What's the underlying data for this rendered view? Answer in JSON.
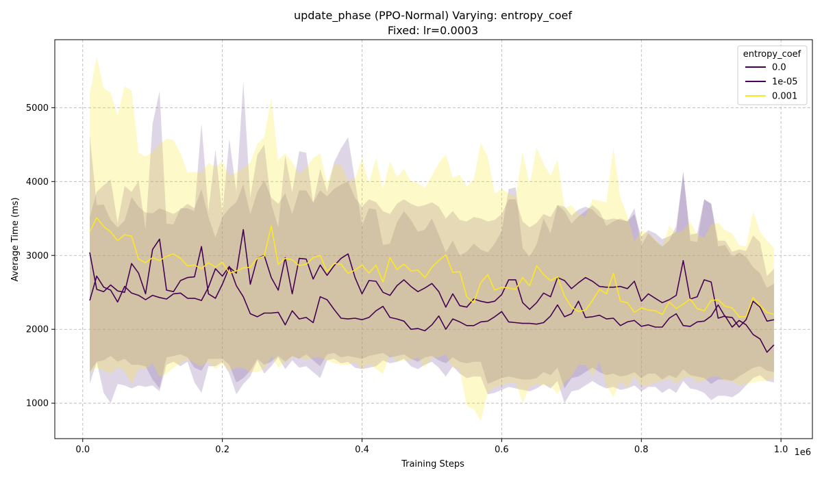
{
  "chart_data": {
    "type": "line",
    "title": "update_phase (PPO-Normal) Varying: entropy_coef",
    "subtitle": "Fixed: lr=0.0003",
    "xlabel": "Training Steps",
    "ylabel": "Average Time (ms)",
    "x_offset_label": "1e6",
    "xlim": [
      -0.04,
      1.045
    ],
    "ylim": [
      520,
      5920
    ],
    "xticks": [
      0.0,
      0.2,
      0.4,
      0.6,
      0.8,
      1.0
    ],
    "xtick_labels": [
      "0.0",
      "0.2",
      "0.4",
      "0.6",
      "0.8",
      "1.0"
    ],
    "yticks": [
      1000,
      2000,
      3000,
      4000,
      5000
    ],
    "ytick_labels": [
      "1000",
      "2000",
      "3000",
      "4000",
      "5000"
    ],
    "grid": true,
    "legend": {
      "title": "entropy_coef",
      "position": "top-right"
    },
    "x": [
      0.01,
      0.02,
      0.03,
      0.04,
      0.05,
      0.06,
      0.07,
      0.08,
      0.09,
      0.1,
      0.11,
      0.12,
      0.13,
      0.14,
      0.15,
      0.16,
      0.17,
      0.18,
      0.19,
      0.2,
      0.21,
      0.22,
      0.23,
      0.24,
      0.25,
      0.26,
      0.27,
      0.28,
      0.29,
      0.3,
      0.31,
      0.32,
      0.33,
      0.34,
      0.35,
      0.36,
      0.37,
      0.38,
      0.39,
      0.4,
      0.41,
      0.42,
      0.43,
      0.44,
      0.45,
      0.46,
      0.47,
      0.48,
      0.49,
      0.5,
      0.51,
      0.52,
      0.53,
      0.54,
      0.55,
      0.56,
      0.57,
      0.58,
      0.59,
      0.6,
      0.61,
      0.62,
      0.63,
      0.64,
      0.65,
      0.66,
      0.67,
      0.68,
      0.69,
      0.7,
      0.71,
      0.72,
      0.73,
      0.74,
      0.75,
      0.76,
      0.77,
      0.78,
      0.79,
      0.8,
      0.81,
      0.82,
      0.83,
      0.84,
      0.85,
      0.86,
      0.87,
      0.88,
      0.89,
      0.9,
      0.91,
      0.92,
      0.93,
      0.94,
      0.95,
      0.96,
      0.97,
      0.98,
      0.99
    ],
    "series": [
      {
        "name": "0.0",
        "color": "#440154",
        "fill_color": "#7b5a9c",
        "values": [
          3040,
          2540,
          2510,
          2600,
          2520,
          2500,
          2890,
          2760,
          2480,
          3080,
          3220,
          2530,
          2510,
          2660,
          2700,
          2710,
          3120,
          2480,
          2420,
          2610,
          2840,
          2760,
          3350,
          2610,
          2960,
          3000,
          2700,
          2530,
          2970,
          2480,
          2960,
          2950,
          2680,
          2870,
          2730,
          2860,
          2960,
          3020,
          2700,
          2480,
          2660,
          2650,
          2500,
          2460,
          2590,
          2670,
          2580,
          2510,
          2560,
          2620,
          2510,
          2300,
          2480,
          2320,
          2300,
          2410,
          2380,
          2360,
          2380,
          2470,
          2670,
          2670,
          2360,
          2270,
          2360,
          2490,
          2440,
          2700,
          2660,
          2550,
          2630,
          2700,
          2650,
          2580,
          2570,
          2570,
          2580,
          2550,
          2650,
          2380,
          2480,
          2420,
          2360,
          2400,
          2460,
          2930,
          2410,
          2440,
          2670,
          2640,
          2150,
          2180,
          2030,
          2120,
          2060,
          1930,
          1870,
          1690,
          1790
        ],
        "upper": [
          4630,
          3680,
          3690,
          3480,
          3380,
          3470,
          3790,
          3660,
          3580,
          3570,
          3640,
          3600,
          3560,
          3620,
          3700,
          3640,
          3900,
          3520,
          3240,
          3520,
          3640,
          3720,
          3960,
          3560,
          3860,
          4020,
          3780,
          3700,
          3840,
          3560,
          3880,
          3880,
          3720,
          3880,
          3800,
          3900,
          3960,
          4000,
          3780,
          3660,
          3760,
          3720,
          3600,
          3560,
          3700,
          3760,
          3700,
          3660,
          3680,
          3720,
          3660,
          3500,
          3600,
          3480,
          3460,
          3520,
          3500,
          3460,
          3480,
          3560,
          3760,
          3760,
          3460,
          3380,
          3440,
          3560,
          3520,
          3680,
          3660,
          3540,
          3620,
          3660,
          3620,
          3520,
          3480,
          3500,
          3480,
          3460,
          3560,
          3260,
          3340,
          3300,
          3220,
          3260,
          3320,
          4130,
          3280,
          3300,
          3760,
          3700,
          3120,
          3140,
          2980,
          3040,
          2980,
          2840,
          2760,
          2560,
          2620
        ],
        "lower": [
          1260,
          1560,
          1140,
          1000,
          1260,
          1240,
          1200,
          1240,
          1220,
          1240,
          1160,
          1520,
          1560,
          1500,
          1560,
          1280,
          1140,
          1500,
          1500,
          1560,
          1400,
          1120,
          1260,
          1360,
          1580,
          1400,
          1500,
          1620,
          1460,
          1580,
          1480,
          1500,
          1420,
          1340,
          1580,
          1600,
          1540,
          1560,
          1480,
          1460,
          1480,
          1500,
          1580,
          1540,
          1560,
          1600,
          1500,
          1460,
          1520,
          1560,
          1480,
          1360,
          1500,
          1400,
          1340,
          1360,
          1360,
          1120,
          1140,
          1180,
          1220,
          1200,
          1180,
          1160,
          1200,
          1260,
          1200,
          1300,
          1000,
          1160,
          1180,
          1240,
          1300,
          1240,
          1200,
          1220,
          1180,
          1200,
          1240,
          1160,
          1220,
          1220,
          1140,
          1200,
          1140,
          1300,
          1200,
          1180,
          1140,
          1040,
          1100,
          1100,
          1080,
          1140,
          1240,
          1340,
          1380,
          1300,
          1280
        ]
      },
      {
        "name": "1e-05",
        "color": "#440154",
        "fill_color": "#7b5a9c",
        "values": [
          2390,
          2720,
          2570,
          2530,
          2370,
          2580,
          2490,
          2460,
          2400,
          2460,
          2430,
          2410,
          2480,
          2490,
          2420,
          2420,
          2390,
          2570,
          2820,
          2720,
          2850,
          2590,
          2440,
          2210,
          2170,
          2220,
          2220,
          2230,
          2060,
          2250,
          2140,
          2160,
          2090,
          2440,
          2400,
          2270,
          2150,
          2140,
          2150,
          2130,
          2160,
          2250,
          2310,
          2160,
          2140,
          2110,
          2000,
          2010,
          1980,
          2060,
          2180,
          2000,
          2140,
          2100,
          2050,
          2050,
          2100,
          2110,
          2170,
          2240,
          2100,
          2090,
          2080,
          2080,
          2070,
          2090,
          2180,
          2330,
          2170,
          2210,
          2380,
          2160,
          2170,
          2190,
          2140,
          2150,
          2050,
          2100,
          2120,
          2040,
          2060,
          2030,
          2030,
          2150,
          2210,
          2050,
          2040,
          2100,
          2110,
          2180,
          2330,
          2170,
          2160,
          2030,
          2130,
          2380,
          2300,
          2110,
          2130
        ],
        "upper": [
          3520,
          3860,
          3950,
          4030,
          3440,
          3940,
          3860,
          4010,
          3350,
          4780,
          5220,
          3430,
          3420,
          3640,
          3640,
          3600,
          4790,
          3600,
          4430,
          3560,
          4580,
          3860,
          5350,
          3780,
          4360,
          4500,
          3700,
          3380,
          4350,
          3860,
          4410,
          4390,
          3700,
          4170,
          3860,
          4260,
          4450,
          4600,
          4010,
          3400,
          3640,
          3620,
          3140,
          3160,
          3450,
          3600,
          3480,
          3320,
          3350,
          3500,
          3280,
          3040,
          3200,
          3000,
          3050,
          3160,
          3080,
          3040,
          3160,
          3330,
          3900,
          3920,
          3100,
          2980,
          3150,
          3500,
          3300,
          3680,
          3600,
          3430,
          3530,
          3600,
          3680,
          3600,
          3400,
          3460,
          3500,
          3460,
          3640,
          3140,
          3300,
          3200,
          3120,
          3200,
          3400,
          4130,
          3200,
          3180,
          3760,
          3700,
          3200,
          3200,
          3050,
          3080,
          3060,
          3270,
          3180,
          2720,
          2820
        ],
        "lower": [
          1420,
          1560,
          1580,
          1640,
          1560,
          1600,
          1520,
          1520,
          1500,
          1320,
          1200,
          1620,
          1640,
          1660,
          1620,
          1480,
          1440,
          1600,
          1600,
          1600,
          1520,
          1280,
          1340,
          1440,
          1600,
          1520,
          1560,
          1640,
          1560,
          1640,
          1600,
          1660,
          1580,
          1500,
          1660,
          1680,
          1620,
          1640,
          1620,
          1600,
          1640,
          1660,
          1680,
          1620,
          1640,
          1660,
          1600,
          1560,
          1620,
          1640,
          1580,
          1540,
          1620,
          1560,
          1540,
          1560,
          1560,
          1260,
          1300,
          1340,
          1360,
          1340,
          1320,
          1320,
          1340,
          1420,
          1380,
          1480,
          1200,
          1340,
          1360,
          1420,
          1480,
          1420,
          1380,
          1400,
          1360,
          1380,
          1420,
          1340,
          1400,
          1400,
          1320,
          1380,
          1340,
          1460,
          1380,
          1360,
          1340,
          1260,
          1320,
          1320,
          1300,
          1360,
          1420,
          1480,
          1500,
          1440,
          1420
        ]
      },
      {
        "name": "0.001",
        "color": "#fde725",
        "fill_color": "#fde725",
        "values": [
          3320,
          3510,
          3390,
          3320,
          3200,
          3280,
          3260,
          2950,
          2900,
          2970,
          2930,
          2990,
          3020,
          2960,
          2860,
          2870,
          2820,
          2900,
          2840,
          2910,
          2760,
          2790,
          2830,
          2840,
          2960,
          2990,
          3400,
          2880,
          2960,
          2940,
          2860,
          2880,
          2970,
          3000,
          2780,
          2890,
          2880,
          2760,
          2800,
          2870,
          2760,
          2870,
          2640,
          2970,
          2810,
          2880,
          2790,
          2800,
          2700,
          2840,
          2930,
          3010,
          2770,
          2780,
          2440,
          2360,
          2630,
          2740,
          2530,
          2570,
          2560,
          2540,
          2700,
          2590,
          2860,
          2740,
          2660,
          2710,
          2450,
          2300,
          2240,
          2260,
          2390,
          2540,
          2480,
          2760,
          2380,
          2360,
          2230,
          2290,
          2260,
          2250,
          2200,
          2370,
          2280,
          2340,
          2410,
          2280,
          2250,
          2390,
          2400,
          2310,
          2290,
          2170,
          2170,
          2430,
          2320,
          2230,
          2200
        ],
        "upper": [
          5180,
          5690,
          5260,
          5210,
          4890,
          5290,
          5230,
          4390,
          4340,
          4400,
          4510,
          4580,
          4560,
          4380,
          4120,
          4130,
          4120,
          4250,
          4200,
          4270,
          4080,
          4120,
          4180,
          4260,
          4510,
          4600,
          5130,
          4290,
          4380,
          4260,
          4100,
          4190,
          4320,
          4380,
          3980,
          4230,
          4230,
          4000,
          4040,
          4310,
          3980,
          4320,
          3900,
          4280,
          4060,
          4170,
          4000,
          3980,
          3910,
          4080,
          4250,
          4370,
          4050,
          4090,
          3930,
          4030,
          4520,
          4340,
          3840,
          3900,
          3840,
          3800,
          4400,
          3960,
          4460,
          4240,
          4080,
          4300,
          3640,
          3680,
          3560,
          3520,
          3760,
          3740,
          3720,
          4460,
          3780,
          3540,
          3180,
          3340,
          3300,
          3220,
          3120,
          3400,
          3300,
          3340,
          3460,
          3280,
          3240,
          3420,
          3440,
          3340,
          3300,
          3140,
          3120,
          3600,
          3320,
          3200,
          3100
        ],
        "lower": [
          1420,
          1480,
          1440,
          1400,
          1480,
          1440,
          1260,
          1460,
          1460,
          1540,
          1360,
          1400,
          1480,
          1540,
          1600,
          1540,
          1500,
          1560,
          1460,
          1540,
          1440,
          1480,
          1480,
          1420,
          1420,
          1460,
          1640,
          1480,
          1560,
          1620,
          1620,
          1580,
          1620,
          1620,
          1580,
          1540,
          1520,
          1520,
          1560,
          1460,
          1540,
          1460,
          1400,
          1660,
          1560,
          1580,
          1580,
          1620,
          1480,
          1620,
          1620,
          1660,
          1480,
          1460,
          960,
          920,
          760,
          1140,
          1220,
          1240,
          1280,
          1280,
          1000,
          1220,
          1260,
          1240,
          1240,
          1120,
          1280,
          1360,
          1520,
          1520,
          1360,
          1560,
          1240,
          1080,
          1300,
          1200,
          1360,
          1240,
          1240,
          1280,
          1300,
          1340,
          1260,
          1340,
          1360,
          1280,
          1300,
          1360,
          1360,
          1300,
          1300,
          1240,
          1260,
          1280,
          1300,
          1300,
          1340
        ]
      }
    ]
  }
}
